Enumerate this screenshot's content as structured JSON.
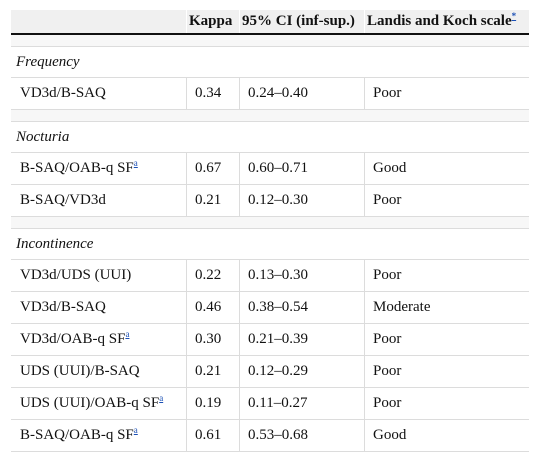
{
  "header": {
    "kappa": "Kappa",
    "ci": "95% CI (inf-sup.)",
    "scale": "Landis and Koch scale",
    "scale_note": "*"
  },
  "sections": [
    {
      "title": "Frequency",
      "rows": [
        {
          "label": "VD3d/B-SAQ",
          "note": "",
          "kappa": "0.34",
          "ci": "0.24–0.40",
          "scale": "Poor"
        }
      ]
    },
    {
      "title": "Nocturia",
      "rows": [
        {
          "label": "B-SAQ/OAB-q SF",
          "note": "a",
          "kappa": "0.67",
          "ci": "0.60–0.71",
          "scale": "Good"
        },
        {
          "label": "B-SAQ/VD3d",
          "note": "",
          "kappa": "0.21",
          "ci": "0.12–0.30",
          "scale": "Poor"
        }
      ]
    },
    {
      "title": "Incontinence",
      "rows": [
        {
          "label": "VD3d/UDS (UUI)",
          "note": "",
          "kappa": "0.22",
          "ci": "0.13–0.30",
          "scale": "Poor"
        },
        {
          "label": "VD3d/B-SAQ",
          "note": "",
          "kappa": "0.46",
          "ci": "0.38–0.54",
          "scale": "Moderate"
        },
        {
          "label": "VD3d/OAB-q SF",
          "note": "a",
          "kappa": "0.30",
          "ci": "0.21–0.39",
          "scale": "Poor"
        },
        {
          "label": "UDS (UUI)/B-SAQ",
          "note": "",
          "kappa": "0.21",
          "ci": "0.12–0.29",
          "scale": "Poor"
        },
        {
          "label": "UDS (UUI)/OAB-q SF",
          "note": "a",
          "kappa": "0.19",
          "ci": "0.11–0.27",
          "scale": "Poor"
        },
        {
          "label": "B-SAQ/OAB-q SF",
          "note": "a",
          "kappa": "0.61",
          "ci": "0.53–0.68",
          "scale": "Good"
        }
      ]
    }
  ]
}
